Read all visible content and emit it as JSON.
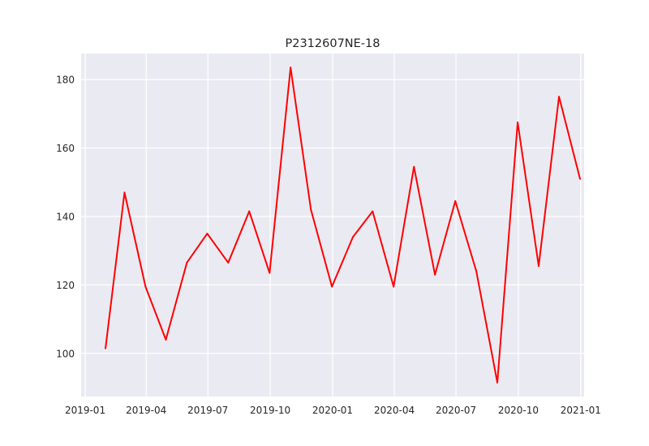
{
  "chart_data": {
    "type": "line",
    "title": "P2312607NE-18",
    "xlabel": "",
    "ylabel": "",
    "x": [
      "2019-01-31",
      "2019-02-28",
      "2019-03-31",
      "2019-04-30",
      "2019-05-31",
      "2019-06-30",
      "2019-07-31",
      "2019-08-31",
      "2019-09-30",
      "2019-10-31",
      "2019-11-30",
      "2019-12-31",
      "2020-01-31",
      "2020-02-29",
      "2020-03-31",
      "2020-04-30",
      "2020-05-31",
      "2020-06-30",
      "2020-07-31",
      "2020-08-31",
      "2020-09-30",
      "2020-10-31",
      "2020-11-30",
      "2020-12-31"
    ],
    "series": [
      {
        "color": "#ff0000",
        "values": [
          101.5,
          147,
          119.5,
          104,
          126.5,
          135,
          126.5,
          141.5,
          123.5,
          183.5,
          142,
          119.5,
          134,
          141.5,
          119.5,
          154.5,
          123,
          144.5,
          124,
          91.5,
          167.5,
          125.5,
          175,
          151
        ]
      }
    ],
    "xticks": [
      {
        "date": "2019-01-01",
        "label": "2019-01"
      },
      {
        "date": "2019-04-01",
        "label": "2019-04"
      },
      {
        "date": "2019-07-01",
        "label": "2019-07"
      },
      {
        "date": "2019-10-01",
        "label": "2019-10"
      },
      {
        "date": "2020-01-01",
        "label": "2020-01"
      },
      {
        "date": "2020-04-01",
        "label": "2020-04"
      },
      {
        "date": "2020-07-01",
        "label": "2020-07"
      },
      {
        "date": "2020-10-01",
        "label": "2020-10"
      },
      {
        "date": "2021-01-01",
        "label": "2021-01"
      }
    ],
    "yticks": [
      100,
      120,
      140,
      160,
      180
    ],
    "xlim": [
      "2018-12-26",
      "2021-01-06"
    ],
    "ylim": [
      87.4,
      187.6
    ],
    "grid": true,
    "background": "#eaeaf2"
  }
}
